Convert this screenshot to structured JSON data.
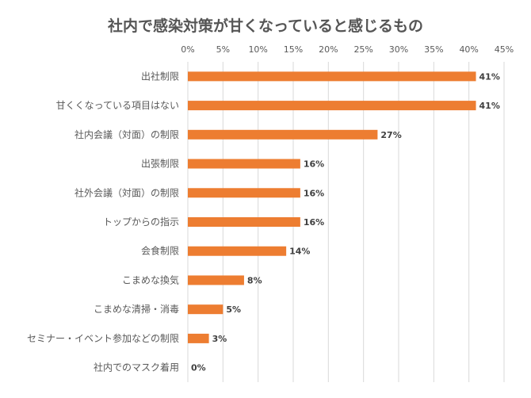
{
  "chart_data": {
    "type": "bar",
    "orientation": "horizontal",
    "title": "社内で感染対策が甘くなっていると感じるもの",
    "categories": [
      "出社制限",
      "甘くくなっている項目はない",
      "社内会議（対面）の制限",
      "出張制限",
      "社外会議（対面）の制限",
      "トップからの指示",
      "会食制限",
      "こまめな換気",
      "こまめな清掃・消毒",
      "セミナー・イベント参加などの制限",
      "社内でのマスク着用"
    ],
    "values": [
      41,
      41,
      27,
      16,
      16,
      16,
      14,
      8,
      5,
      3,
      0
    ],
    "value_labels": [
      "41%",
      "41%",
      "27%",
      "16%",
      "16%",
      "16%",
      "14%",
      "8%",
      "5%",
      "3%",
      "0%"
    ],
    "xlim": [
      0,
      45
    ],
    "x_ticks": [
      "0%",
      "5%",
      "10%",
      "15%",
      "20%",
      "25%",
      "30%",
      "35%",
      "40%",
      "45%"
    ],
    "x_axis_position": "top",
    "grid": true,
    "bar_color": "#ED7D31",
    "grid_color": "#D9D9D9",
    "text_color": "#595959"
  }
}
